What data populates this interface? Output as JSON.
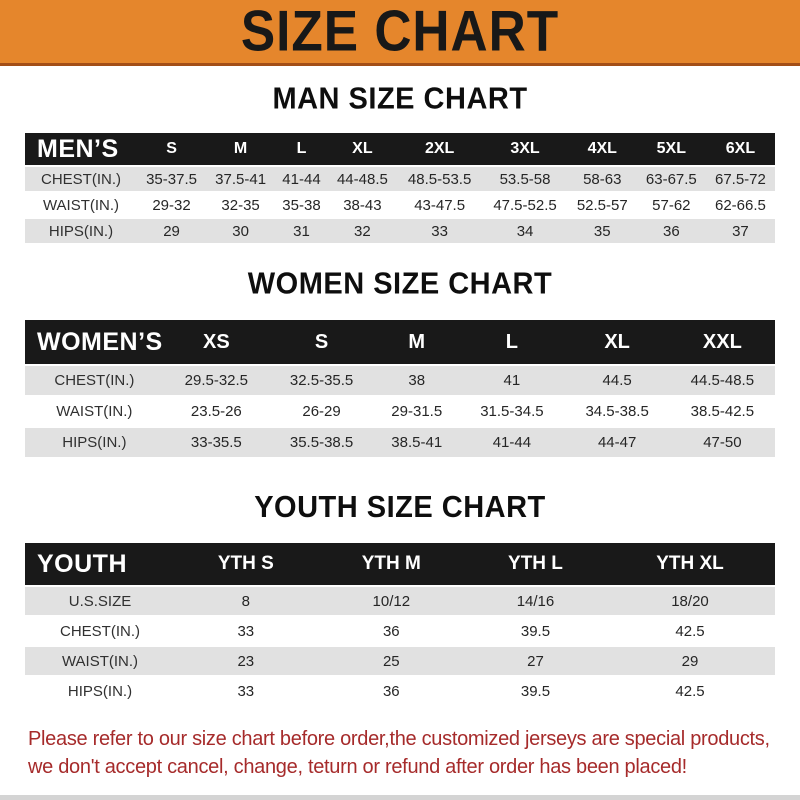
{
  "banner": {
    "title": "SIZE CHART",
    "bg_color": "#E5862C",
    "underline_color": "#A34E17",
    "text_color": "#181818"
  },
  "sections": [
    {
      "heading": "MAN SIZE CHART",
      "row_label": "MEN’S",
      "columns": [
        "S",
        "M",
        "L",
        "XL",
        "2XL",
        "3XL",
        "4XL",
        "5XL",
        "6XL"
      ],
      "rows": [
        {
          "label": "CHEST(IN.)",
          "values": [
            "35-37.5",
            "37.5-41",
            "41-44",
            "44-48.5",
            "48.5-53.5",
            "53.5-58",
            "58-63",
            "63-67.5",
            "67.5-72"
          ]
        },
        {
          "label": "WAIST(IN.)",
          "values": [
            "29-32",
            "32-35",
            "35-38",
            "38-43",
            "43-47.5",
            "47.5-52.5",
            "52.5-57",
            "57-62",
            "62-66.5"
          ]
        },
        {
          "label": "HIPS(IN.)",
          "values": [
            "29",
            "30",
            "31",
            "32",
            "33",
            "34",
            "35",
            "36",
            "37"
          ]
        }
      ]
    },
    {
      "heading": "WOMEN SIZE CHART",
      "row_label": "WOMEN’S",
      "columns": [
        "XS",
        "S",
        "M",
        "L",
        "XL",
        "XXL"
      ],
      "rows": [
        {
          "label": "CHEST(IN.)",
          "values": [
            "29.5-32.5",
            "32.5-35.5",
            "38",
            "41",
            "44.5",
            "44.5-48.5"
          ]
        },
        {
          "label": "WAIST(IN.)",
          "values": [
            "23.5-26",
            "26-29",
            "29-31.5",
            "31.5-34.5",
            "34.5-38.5",
            "38.5-42.5"
          ]
        },
        {
          "label": "HIPS(IN.)",
          "values": [
            "33-35.5",
            "35.5-38.5",
            "38.5-41",
            "41-44",
            "44-47",
            "47-50"
          ]
        }
      ]
    },
    {
      "heading": "YOUTH SIZE CHART",
      "row_label": "YOUTH",
      "columns": [
        "YTH S",
        "YTH M",
        "YTH L",
        "YTH XL"
      ],
      "rows": [
        {
          "label": "U.S.SIZE",
          "values": [
            "8",
            "10/12",
            "14/16",
            "18/20"
          ]
        },
        {
          "label": "CHEST(IN.)",
          "values": [
            "33",
            "36",
            "39.5",
            "42.5"
          ]
        },
        {
          "label": "WAIST(IN.)",
          "values": [
            "23",
            "25",
            "27",
            "29"
          ]
        },
        {
          "label": "HIPS(IN.)",
          "values": [
            "33",
            "36",
            "39.5",
            "42.5"
          ]
        }
      ]
    }
  ],
  "footer": {
    "line1": "Please refer to our size chart before order,the customized jerseys are special products,",
    "line2": "we don't accept cancel, change, teturn or refund after order has been placed!",
    "text_color": "#A62B2B"
  }
}
